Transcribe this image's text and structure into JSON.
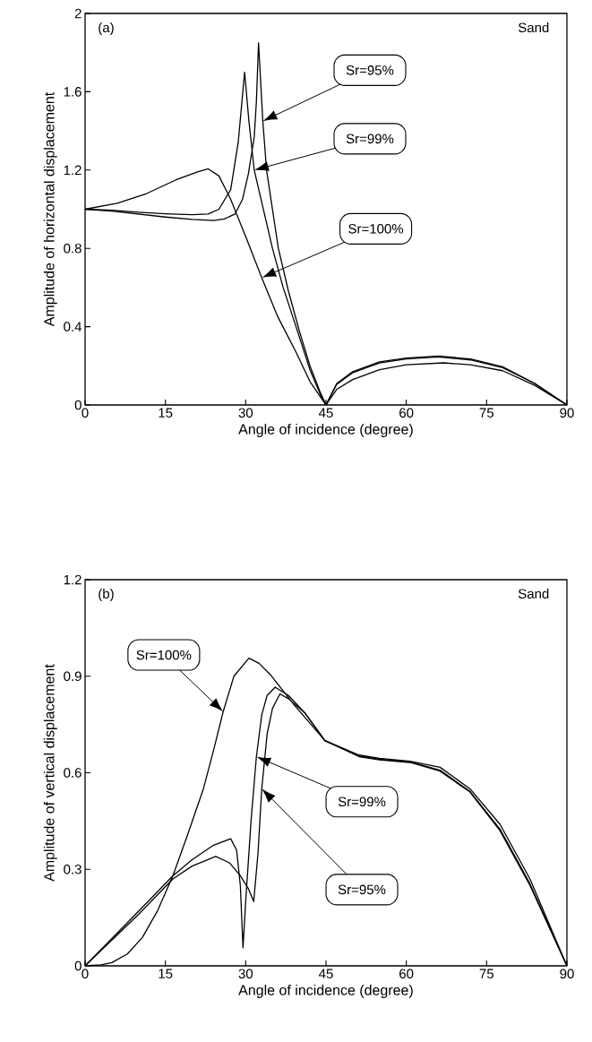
{
  "chart_data": [
    {
      "type": "line",
      "xlabel": "Angle of incidence (degree)",
      "ylabel": "Amplitude of horizontal displacement",
      "annotations": [
        "(a)",
        "Sand"
      ],
      "xlim": [
        0,
        90
      ],
      "ylim": [
        0,
        2
      ],
      "xticks": [
        0,
        15,
        30,
        45,
        60,
        75,
        90
      ],
      "yticks": [
        0,
        0.4,
        0.8,
        1.2,
        1.6,
        2
      ],
      "legend": "right",
      "grid": false,
      "line_style": "solid",
      "marker": "none",
      "series": [
        {
          "name": "Sr=95%",
          "color": "#000000",
          "x": [
            0,
            5,
            10,
            15,
            20,
            24,
            26,
            28,
            29.4,
            30.5,
            31.6,
            32,
            32.4,
            33.2,
            33.9,
            36.1,
            38,
            40,
            42,
            44,
            45,
            47,
            50,
            55,
            60,
            66,
            72,
            78,
            84,
            90
          ],
          "values": [
            1.0,
            0.99,
            0.975,
            0.96,
            0.948,
            0.942,
            0.95,
            0.975,
            1.05,
            1.18,
            1.37,
            1.55,
            1.85,
            1.45,
            1.2,
            0.8,
            0.58,
            0.38,
            0.2,
            0.06,
            0,
            0.11,
            0.17,
            0.22,
            0.24,
            0.25,
            0.235,
            0.195,
            0.11,
            0
          ]
        },
        {
          "name": "Sr=99%",
          "color": "#000000",
          "x": [
            0,
            5,
            10,
            15,
            20,
            23,
            25,
            27.2,
            28.6,
            29.3,
            29.8,
            30.6,
            31.6,
            35,
            37,
            39.4,
            42,
            44,
            45,
            47,
            50,
            55,
            60,
            66,
            72,
            78,
            84,
            90
          ],
          "values": [
            1.0,
            0.995,
            0.985,
            0.977,
            0.972,
            0.975,
            1.0,
            1.1,
            1.34,
            1.55,
            1.7,
            1.45,
            1.2,
            0.8,
            0.6,
            0.4,
            0.18,
            0.05,
            0,
            0.105,
            0.165,
            0.215,
            0.235,
            0.245,
            0.23,
            0.19,
            0.11,
            0
          ]
        },
        {
          "name": "Sr=100%",
          "color": "#000000",
          "x": [
            0,
            6,
            11.5,
            17,
            21,
            23,
            25,
            27.2,
            30,
            33,
            36,
            39.4,
            42,
            45,
            47,
            50,
            55,
            60,
            67,
            72,
            78,
            84,
            90
          ],
          "values": [
            1.0,
            1.03,
            1.08,
            1.15,
            1.19,
            1.206,
            1.17,
            1.05,
            0.86,
            0.65,
            0.45,
            0.27,
            0.12,
            0,
            0.08,
            0.13,
            0.18,
            0.205,
            0.215,
            0.205,
            0.175,
            0.1,
            0
          ]
        }
      ]
    },
    {
      "type": "line",
      "xlabel": "Angle of incidence (degree)",
      "ylabel": "Amplitude of vertical displacement",
      "annotations": [
        "(b)",
        "Sand"
      ],
      "xlim": [
        0,
        90
      ],
      "ylim": [
        0,
        1.2
      ],
      "xticks": [
        0,
        15,
        30,
        45,
        60,
        75,
        90
      ],
      "yticks": [
        0,
        0.3,
        0.6,
        0.9,
        1.2
      ],
      "legend": "center",
      "grid": false,
      "line_style": "solid",
      "marker": "none",
      "series": [
        {
          "name": "Sr=100%",
          "color": "#000000",
          "x": [
            0,
            3,
            5,
            7.9,
            10.7,
            13.5,
            16.4,
            19,
            22.1,
            24,
            25.8,
            27.8,
            30.6,
            32.5,
            34.6,
            39.1,
            44.8,
            51.2,
            55,
            60.7,
            66.3,
            71.9,
            77.5,
            83.1,
            90
          ],
          "values": [
            0,
            0.003,
            0.01,
            0.037,
            0.088,
            0.17,
            0.28,
            0.4,
            0.55,
            0.67,
            0.79,
            0.9,
            0.956,
            0.94,
            0.905,
            0.81,
            0.7,
            0.655,
            0.645,
            0.636,
            0.617,
            0.55,
            0.44,
            0.27,
            0
          ]
        },
        {
          "name": "Sr=99%",
          "color": "#000000",
          "x": [
            0,
            5,
            10,
            16.4,
            20,
            24,
            27.2,
            28.3,
            29,
            29.5,
            30,
            31,
            32,
            33,
            34,
            35.5,
            38,
            41.1,
            44.8,
            51.2,
            55,
            60.7,
            66.3,
            71.9,
            77.5,
            83.1,
            90
          ],
          "values": [
            0,
            0.085,
            0.17,
            0.28,
            0.33,
            0.375,
            0.395,
            0.36,
            0.25,
            0.056,
            0.2,
            0.45,
            0.65,
            0.78,
            0.84,
            0.866,
            0.84,
            0.785,
            0.7,
            0.652,
            0.642,
            0.634,
            0.608,
            0.542,
            0.425,
            0.255,
            0
          ]
        },
        {
          "name": "Sr=95%",
          "color": "#000000",
          "x": [
            0,
            5,
            10,
            16.4,
            20,
            24.4,
            27,
            29,
            30.5,
            31.5,
            32.3,
            33,
            34,
            35,
            36.4,
            38,
            41.1,
            44.8,
            51.2,
            55,
            60.7,
            66.3,
            71.9,
            77.5,
            83.1,
            90
          ],
          "values": [
            0,
            0.08,
            0.16,
            0.27,
            0.31,
            0.34,
            0.32,
            0.28,
            0.24,
            0.2,
            0.35,
            0.55,
            0.72,
            0.8,
            0.845,
            0.83,
            0.785,
            0.7,
            0.65,
            0.64,
            0.632,
            0.605,
            0.54,
            0.42,
            0.25,
            0
          ]
        }
      ]
    }
  ]
}
